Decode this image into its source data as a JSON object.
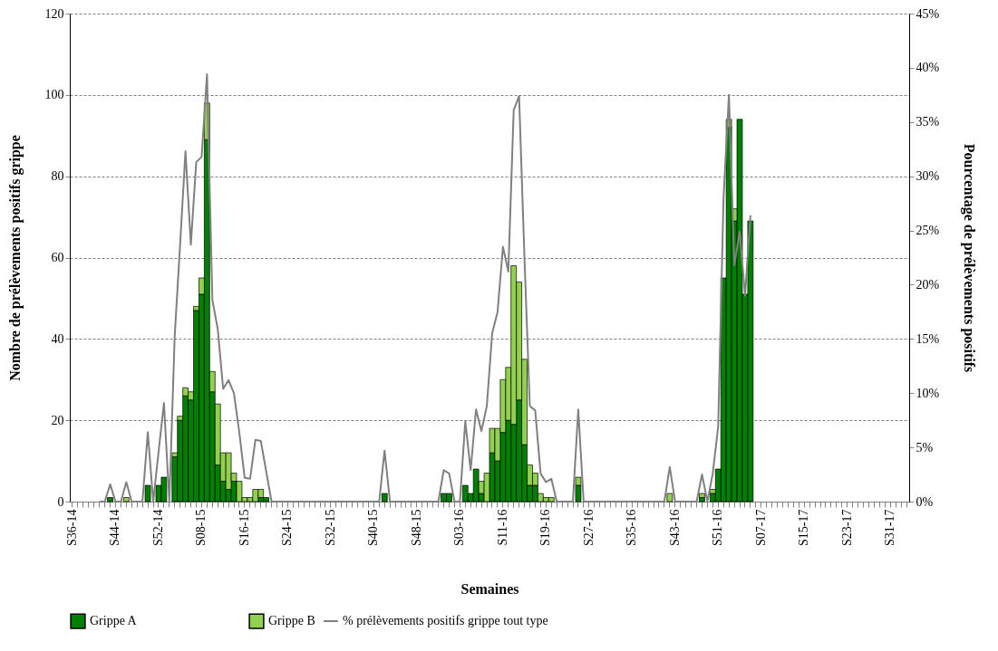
{
  "chart_data": {
    "type": "bar",
    "xlabel": "Semaines",
    "ylabel": "Nombre de prélèvements positifs grippe",
    "y2label": "Pourcentage de prélèvements positifs",
    "categories": [
      "S36-14",
      null,
      null,
      null,
      null,
      null,
      null,
      null,
      "S44-14",
      null,
      null,
      null,
      null,
      null,
      null,
      null,
      "S52-14",
      null,
      null,
      null,
      null,
      null,
      null,
      null,
      "S08-15",
      null,
      null,
      null,
      null,
      null,
      null,
      null,
      "S16-15",
      null,
      null,
      null,
      null,
      null,
      null,
      null,
      "S24-15",
      null,
      null,
      null,
      null,
      null,
      null,
      null,
      "S32-15",
      null,
      null,
      null,
      null,
      null,
      null,
      null,
      "S40-15",
      null,
      null,
      null,
      null,
      null,
      null,
      null,
      "S48-15",
      null,
      null,
      null,
      null,
      null,
      null,
      null,
      "S03-16",
      null,
      null,
      null,
      null,
      null,
      null,
      null,
      "S11-16",
      null,
      null,
      null,
      null,
      null,
      null,
      null,
      "S19-16",
      null,
      null,
      null,
      null,
      null,
      null,
      null,
      "S27-16",
      null,
      null,
      null,
      null,
      null,
      null,
      null,
      "S35-16",
      null,
      null,
      null,
      null,
      null,
      null,
      null,
      "S43-16",
      null,
      null,
      null,
      null,
      null,
      null,
      null,
      "S51-16",
      null,
      null,
      null,
      null,
      null,
      null,
      null,
      "S07-17",
      null,
      null,
      null,
      null,
      null,
      null,
      null,
      "S15-17",
      null,
      null,
      null,
      null,
      null,
      null,
      null,
      "S23-17",
      null,
      null,
      null,
      null,
      null,
      null,
      null,
      "S31-17",
      null,
      null,
      null
    ],
    "stacked": true,
    "ylim": [
      0,
      120
    ],
    "yticks": [
      0,
      20,
      40,
      60,
      80,
      100,
      120
    ],
    "y2lim": [
      0,
      45
    ],
    "y2ticks": [
      {
        "value": 0,
        "label": "0%"
      },
      {
        "value": 5,
        "label": "5%"
      },
      {
        "value": 10,
        "label": "10%"
      },
      {
        "value": 15,
        "label": "15%"
      },
      {
        "value": 20,
        "label": "20%"
      },
      {
        "value": 25,
        "label": "25%"
      },
      {
        "value": 30,
        "label": "30%"
      },
      {
        "value": 35,
        "label": "35%"
      },
      {
        "value": 40,
        "label": "40%"
      },
      {
        "value": 45,
        "label": "45%"
      }
    ],
    "grid": "y",
    "legend": "bottom",
    "series": [
      {
        "name": "Grippe A",
        "color": "#008000",
        "values": [
          0,
          0,
          0,
          0,
          0,
          0,
          0,
          1,
          0,
          0,
          0,
          0,
          0,
          0,
          4,
          0,
          4,
          6,
          0,
          11,
          20,
          26,
          25,
          47,
          51,
          89,
          27,
          9,
          5,
          3,
          5,
          0,
          0,
          0,
          0,
          1,
          1,
          0,
          0,
          0,
          0,
          0,
          0,
          0,
          0,
          0,
          0,
          0,
          0,
          0,
          0,
          0,
          0,
          0,
          0,
          0,
          0,
          0,
          2,
          0,
          0,
          0,
          0,
          0,
          0,
          0,
          0,
          0,
          0,
          2,
          2,
          0,
          0,
          4,
          2,
          8,
          2,
          0,
          12,
          10,
          17,
          20,
          19,
          25,
          14,
          4,
          4,
          0,
          0,
          0,
          0,
          0,
          0,
          0,
          4,
          0,
          0,
          0,
          0,
          0,
          0,
          0,
          0,
          0,
          0,
          0,
          0,
          0,
          0,
          0,
          0,
          0,
          0,
          0,
          0,
          0,
          0,
          1,
          0,
          2,
          8,
          55,
          92,
          69,
          94,
          51,
          69,
          null,
          null,
          null,
          null,
          null,
          null,
          null,
          null,
          null,
          null,
          null,
          null,
          null,
          null,
          null,
          null,
          null,
          null,
          null,
          null,
          null,
          null,
          null,
          null,
          null,
          null,
          null,
          null,
          null
        ]
      },
      {
        "name": "Grippe B",
        "color": "#92d050",
        "values": [
          0,
          0,
          0,
          0,
          0,
          0,
          0,
          0,
          0,
          0,
          1,
          0,
          0,
          0,
          0,
          0,
          0,
          0,
          0,
          1,
          1,
          2,
          2,
          1,
          4,
          9,
          5,
          15,
          7,
          9,
          2,
          5,
          1,
          1,
          3,
          2,
          0,
          0,
          0,
          0,
          0,
          0,
          0,
          0,
          0,
          0,
          0,
          0,
          0,
          0,
          0,
          0,
          0,
          0,
          0,
          0,
          0,
          0,
          0,
          0,
          0,
          0,
          0,
          0,
          0,
          0,
          0,
          0,
          0,
          0,
          0,
          0,
          0,
          0,
          0,
          0,
          3,
          7,
          6,
          8,
          13,
          13,
          39,
          29,
          21,
          5,
          3,
          2,
          1,
          1,
          0,
          0,
          0,
          0,
          2,
          0,
          0,
          0,
          0,
          0,
          0,
          0,
          0,
          0,
          0,
          0,
          0,
          0,
          0,
          0,
          0,
          2,
          0,
          0,
          0,
          0,
          0,
          1,
          0,
          1,
          0,
          0,
          2,
          3,
          0,
          0,
          0,
          null,
          null,
          null,
          null,
          null,
          null,
          null,
          null,
          null,
          null,
          null,
          null,
          null,
          null,
          null,
          null,
          null,
          null,
          null,
          null,
          null,
          null,
          null,
          null,
          null,
          null,
          null,
          null,
          null
        ]
      },
      {
        "name": "% prélèvements positifs grippe tout type",
        "type": "line",
        "axis": "y2",
        "color": "#808080",
        "values": [
          null,
          null,
          null,
          null,
          null,
          0,
          0,
          1.6,
          0,
          0,
          1.8,
          0,
          0,
          0,
          6.4,
          0,
          4.6,
          9.1,
          0,
          15.3,
          23.7,
          32.3,
          23.7,
          31.3,
          31.8,
          39.4,
          18.6,
          15.9,
          10.4,
          11.2,
          10,
          6.4,
          2.2,
          2.1,
          5.7,
          5.6,
          2.8,
          0,
          0,
          0,
          0,
          0,
          0,
          0,
          0,
          0,
          0,
          0,
          0,
          0,
          0,
          0,
          0,
          0,
          0,
          0,
          0,
          0,
          4.7,
          0,
          0,
          0,
          0,
          0,
          0,
          0,
          0,
          0,
          0,
          2.9,
          2.6,
          0,
          0,
          7.4,
          2.9,
          8.5,
          6.5,
          8.8,
          15.5,
          17.5,
          23.5,
          21.2,
          36.1,
          37.4,
          22.5,
          8.8,
          8.4,
          2.6,
          1.8,
          2.1,
          0,
          0,
          0,
          0,
          8.5,
          0,
          0,
          0,
          0,
          0,
          0,
          0,
          0,
          0,
          0,
          0,
          0,
          0,
          0,
          0,
          0,
          3.2,
          0,
          0,
          0,
          0,
          0,
          2.5,
          0,
          2.6,
          6.9,
          28,
          37.5,
          21.8,
          24.9,
          19,
          26.4,
          null,
          null,
          null,
          null,
          null,
          null,
          null,
          null,
          null,
          null,
          null,
          null,
          null,
          null,
          null,
          null,
          null,
          null,
          null,
          null,
          null,
          null,
          null,
          null,
          null,
          null,
          null,
          null,
          null
        ]
      }
    ]
  }
}
